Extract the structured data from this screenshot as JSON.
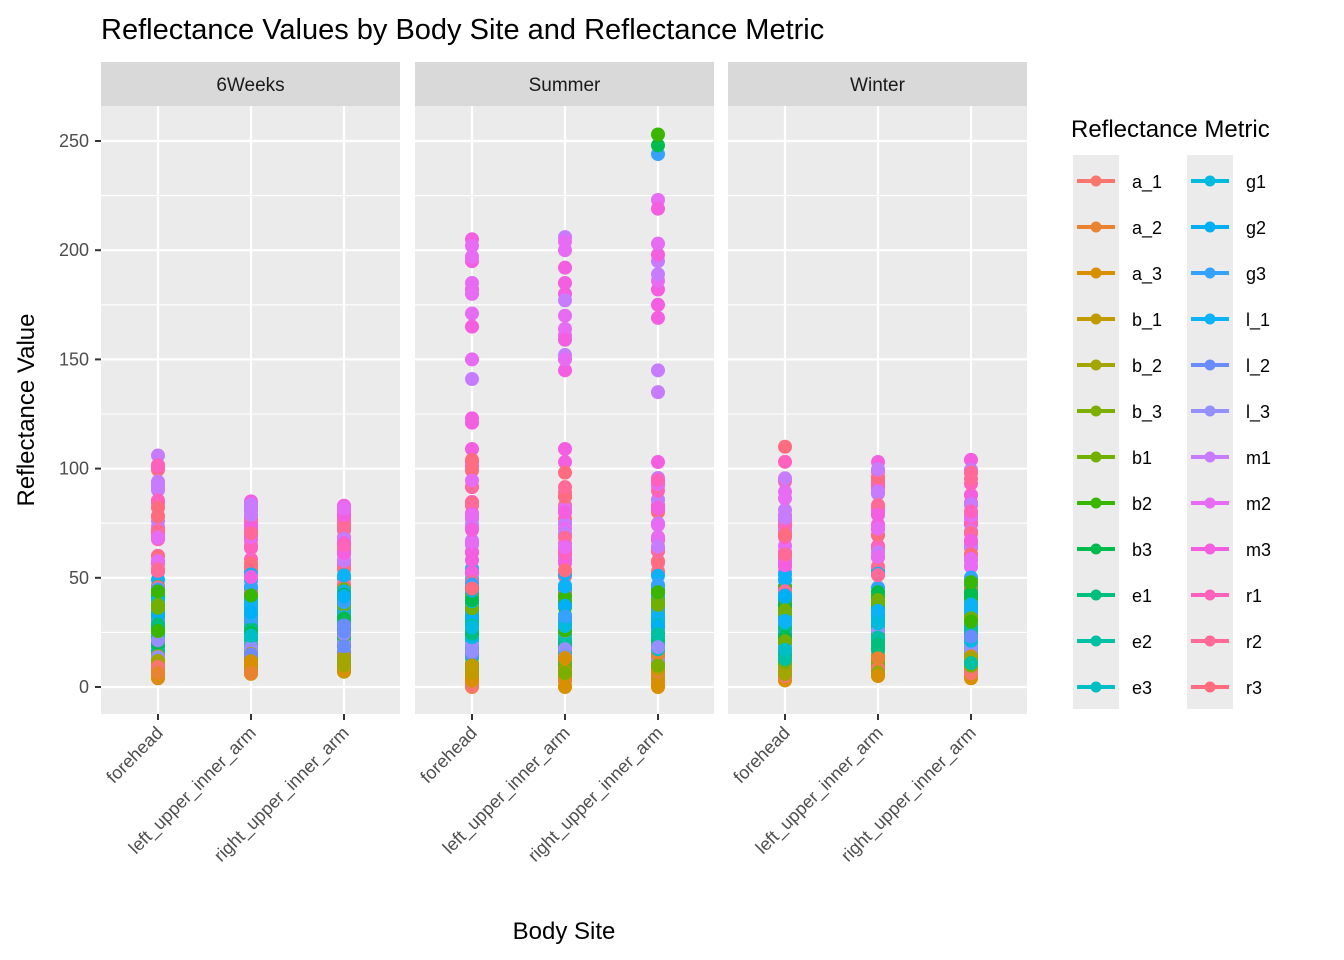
{
  "chart_data": {
    "type": "scatter",
    "title": "Reflectance Values by Body Site and Reflectance Metric",
    "xlabel": "Body Site",
    "ylabel": "Reflectance Value",
    "ylim": [
      -12,
      266
    ],
    "yticks": [
      0,
      50,
      100,
      150,
      200,
      250
    ],
    "ytick_labels": [
      "0",
      "50",
      "100",
      "150",
      "200",
      "250"
    ],
    "grid": true,
    "categories": [
      "forehead",
      "left_upper_inner_arm",
      "right_upper_inner_arm"
    ],
    "facets": [
      "6Weeks",
      "Summer",
      "Winter"
    ],
    "legend": {
      "title": "Reflectance Metric",
      "placement": "right",
      "entries": [
        {
          "name": "a_1",
          "color": "#F8766D"
        },
        {
          "name": "a_2",
          "color": "#EA8331"
        },
        {
          "name": "a_3",
          "color": "#D89000"
        },
        {
          "name": "b_1",
          "color": "#C09B00"
        },
        {
          "name": "b_2",
          "color": "#A3A500"
        },
        {
          "name": "b_3",
          "color": "#7CAE00"
        },
        {
          "name": "b1",
          "color": "#72B000"
        },
        {
          "name": "b2",
          "color": "#39B600"
        },
        {
          "name": "b3",
          "color": "#00BB4E"
        },
        {
          "name": "e1",
          "color": "#00BF7D"
        },
        {
          "name": "e2",
          "color": "#00C1A3"
        },
        {
          "name": "e3",
          "color": "#00BFC4"
        },
        {
          "name": "g1",
          "color": "#00BAE0"
        },
        {
          "name": "g2",
          "color": "#00B0F6"
        },
        {
          "name": "g3",
          "color": "#35A2FF"
        },
        {
          "name": "l_1",
          "color": "#0CB2F8"
        },
        {
          "name": "l_2",
          "color": "#6B8CFF"
        },
        {
          "name": "l_3",
          "color": "#9590FF"
        },
        {
          "name": "m1",
          "color": "#C77CFF"
        },
        {
          "name": "m2",
          "color": "#E76BF3"
        },
        {
          "name": "m3",
          "color": "#F35FE0"
        },
        {
          "name": "r1",
          "color": "#FF62BC"
        },
        {
          "name": "r2",
          "color": "#FF6A98"
        },
        {
          "name": "r3",
          "color": "#FF6C7F"
        }
      ]
    },
    "series_summary": [
      {
        "facet": "6Weeks",
        "category": "forehead",
        "min": 4,
        "max": 106,
        "high_points": []
      },
      {
        "facet": "6Weeks",
        "category": "left_upper_inner_arm",
        "min": 6,
        "max": 85,
        "high_points": []
      },
      {
        "facet": "6Weeks",
        "category": "right_upper_inner_arm",
        "min": 7,
        "max": 83,
        "high_points": []
      },
      {
        "facet": "Summer",
        "category": "forehead",
        "min": 0,
        "max": 104,
        "high_points": [
          {
            "metric": "m3",
            "value": 205
          },
          {
            "metric": "m2",
            "value": 202
          },
          {
            "metric": "m2",
            "value": 197
          },
          {
            "metric": "m3",
            "value": 195
          },
          {
            "metric": "m2",
            "value": 185
          },
          {
            "metric": "m3",
            "value": 182
          },
          {
            "metric": "m2",
            "value": 180
          },
          {
            "metric": "m2",
            "value": 171
          },
          {
            "metric": "m3",
            "value": 165
          },
          {
            "metric": "m2",
            "value": 150
          },
          {
            "metric": "m1",
            "value": 141
          },
          {
            "metric": "m3",
            "value": 123
          },
          {
            "metric": "m3",
            "value": 121
          },
          {
            "metric": "m3",
            "value": 109
          }
        ]
      },
      {
        "facet": "Summer",
        "category": "left_upper_inner_arm",
        "min": 0,
        "max": 103,
        "high_points": [
          {
            "metric": "m1",
            "value": 206
          },
          {
            "metric": "m2",
            "value": 204
          },
          {
            "metric": "m2",
            "value": 200
          },
          {
            "metric": "m3",
            "value": 192
          },
          {
            "metric": "m3",
            "value": 185
          },
          {
            "metric": "m3",
            "value": 180
          },
          {
            "metric": "m1",
            "value": 177
          },
          {
            "metric": "m2",
            "value": 170
          },
          {
            "metric": "m2",
            "value": 164
          },
          {
            "metric": "m2",
            "value": 161
          },
          {
            "metric": "m3",
            "value": 159
          },
          {
            "metric": "m1",
            "value": 152
          },
          {
            "metric": "m2",
            "value": 150
          },
          {
            "metric": "m3",
            "value": 145
          },
          {
            "metric": "m3",
            "value": 109
          }
        ]
      },
      {
        "facet": "Summer",
        "category": "right_upper_inner_arm",
        "min": 0,
        "max": 103,
        "high_points": [
          {
            "metric": "b2",
            "value": 253
          },
          {
            "metric": "b3",
            "value": 248
          },
          {
            "metric": "g3",
            "value": 244
          },
          {
            "metric": "m2",
            "value": 223
          },
          {
            "metric": "m3",
            "value": 219
          },
          {
            "metric": "m2",
            "value": 203
          },
          {
            "metric": "m3",
            "value": 198
          },
          {
            "metric": "m1",
            "value": 195
          },
          {
            "metric": "m1",
            "value": 189
          },
          {
            "metric": "m2",
            "value": 186
          },
          {
            "metric": "m3",
            "value": 182
          },
          {
            "metric": "m3",
            "value": 175
          },
          {
            "metric": "m3",
            "value": 169
          },
          {
            "metric": "m1",
            "value": 145
          },
          {
            "metric": "m1",
            "value": 135
          }
        ]
      },
      {
        "facet": "Winter",
        "category": "forehead",
        "min": 3,
        "max": 110,
        "high_points": []
      },
      {
        "facet": "Winter",
        "category": "left_upper_inner_arm",
        "min": 5,
        "max": 103,
        "high_points": []
      },
      {
        "facet": "Winter",
        "category": "right_upper_inner_arm",
        "min": 4,
        "max": 104,
        "high_points": []
      }
    ],
    "metric_typical_ranges": {
      "a_1": [
        0,
        14
      ],
      "a_2": [
        2,
        15
      ],
      "a_3": [
        0,
        14
      ],
      "b_1": [
        4,
        16
      ],
      "b_2": [
        5,
        14
      ],
      "b_3": [
        6,
        13
      ],
      "b1": [
        20,
        45
      ],
      "b2": [
        22,
        48
      ],
      "b3": [
        20,
        45
      ],
      "e1": [
        14,
        34
      ],
      "e2": [
        10,
        30
      ],
      "e3": [
        12,
        32
      ],
      "g1": [
        20,
        40
      ],
      "g2": [
        25,
        45
      ],
      "g3": [
        28,
        50
      ],
      "l_1": [
        30,
        55
      ],
      "l_2": [
        14,
        30
      ],
      "l_3": [
        12,
        28
      ],
      "m1": [
        55,
        100
      ],
      "m2": [
        55,
        95
      ],
      "m3": [
        50,
        90
      ],
      "r1": [
        55,
        104
      ],
      "r2": [
        40,
        100
      ],
      "r3": [
        40,
        100
      ]
    }
  }
}
